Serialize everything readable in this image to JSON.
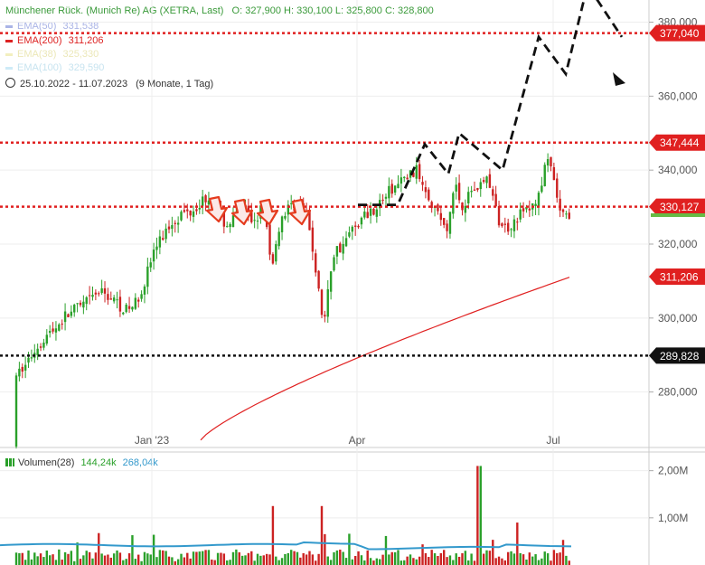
{
  "header": {
    "title": "Münchener Rück. (Munich Re) AG (XETRA, Last)",
    "ohlc": "O: 327,900  H: 330,100  L: 325,800  C: 328,800",
    "period": "25.10.2022 - 11.07.2023",
    "period_note": "(9 Monate, 1 Tag)"
  },
  "legend": [
    {
      "name": "EMA(50)",
      "value": "331,538",
      "color": "#aab4e6"
    },
    {
      "name": "EMA(200)",
      "value": "311,206",
      "color": "#dd2222"
    },
    {
      "name": "EMA(38)",
      "value": "325,330",
      "color": "#e6e080"
    },
    {
      "name": "EMA(100)",
      "value": "329,590",
      "color": "#9fd8f0"
    }
  ],
  "volume_legend": {
    "name": "Volumen(28)",
    "value1": "144,24k",
    "value2": "268,04k"
  },
  "colors": {
    "up": "#2aa02a",
    "down": "#cc2222",
    "ema200": "#e02020",
    "level": "#e02020",
    "level_black": "#111111",
    "vol_avg": "#3399cc"
  },
  "chart_data": {
    "type": "candlestick",
    "y_ticks": [
      "280,000",
      "300,000",
      "320,000",
      "340,000",
      "360,000",
      "380,000"
    ],
    "y_tick_values": [
      280,
      300,
      320,
      340,
      360,
      380
    ],
    "ylim": [
      265,
      386
    ],
    "x_ticks": [
      "Jan '23",
      "Apr",
      "Jul"
    ],
    "vol_ticks": [
      "1,00M",
      "2,00M"
    ],
    "vol_tick_values": [
      1.0,
      2.0
    ],
    "levels": [
      {
        "value": 377.04,
        "label": "377,040",
        "color": "red"
      },
      {
        "value": 347.444,
        "label": "347,444",
        "color": "red"
      },
      {
        "value": 330.127,
        "label": "330,127",
        "color": "red"
      },
      {
        "value": 289.828,
        "label": "289,828",
        "color": "black"
      }
    ],
    "ema200_label": "311,206",
    "ema200_value": 311.206,
    "last_price_marker": 328.8
  }
}
